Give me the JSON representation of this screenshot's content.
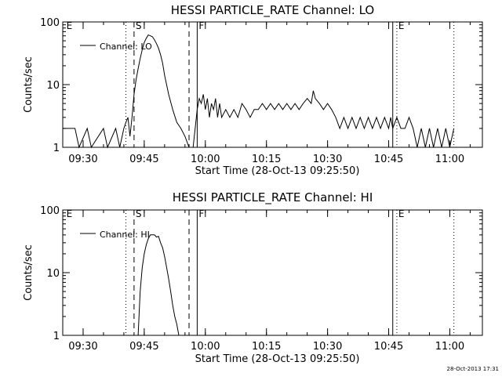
{
  "chart_data": [
    {
      "type": "line",
      "title": "HESSI PARTICLE_RATE Channel: LO",
      "ylabel": "Counts/sec",
      "xlabel": "Start Time (28-Oct-13 09:25:50)",
      "y_scale": "log",
      "ylim": [
        1,
        100
      ],
      "y_ticks": [
        {
          "value": 1,
          "label": "1"
        },
        {
          "value": 10,
          "label": "10"
        },
        {
          "value": 100,
          "label": "100"
        }
      ],
      "xlim": [
        "09:25",
        "11:08"
      ],
      "x_ticks": [
        "09:30",
        "09:45",
        "10:00",
        "10:15",
        "10:30",
        "10:45",
        "11:00"
      ],
      "legend": {
        "position": "top-left",
        "label": "Channel: LO"
      },
      "markers": [
        {
          "time": "09:25.5",
          "label": "E",
          "style": "none"
        },
        {
          "time": "09:40.5",
          "label": "",
          "style": "dotted"
        },
        {
          "time": "09:42.5",
          "label": "S",
          "style": "dashed"
        },
        {
          "time": "09:56",
          "label": "",
          "style": "dashed"
        },
        {
          "time": "09:58",
          "label": "F",
          "style": "solid"
        },
        {
          "time": "10:46",
          "label": "",
          "style": "solid"
        },
        {
          "time": "10:47",
          "label": "E",
          "style": "dotted"
        },
        {
          "time": "11:01",
          "label": "",
          "style": "dotted"
        }
      ],
      "series": [
        {
          "x": [
            "09:25",
            "09:28",
            "09:29",
            "09:31",
            "09:32",
            "09:35",
            "09:36",
            "09:38",
            "09:39",
            "09:40",
            "09:40.5",
            "09:41",
            "09:41.5",
            "09:42",
            "09:42.5",
            "09:43",
            "09:43.5",
            "09:44",
            "09:44.5",
            "09:45",
            "09:45.5",
            "09:46",
            "09:46.5",
            "09:47",
            "09:47.5",
            "09:48",
            "09:48.5",
            "09:49",
            "09:49.5",
            "09:50",
            "09:51",
            "09:52",
            "09:53",
            "09:54",
            "09:55",
            "09:56",
            "09:57",
            "09:58",
            "09:58.5",
            "09:59",
            "09:59.5",
            "10:00",
            "10:00.5",
            "10:01",
            "10:01.5",
            "10:02",
            "10:02.5",
            "10:03",
            "10:03.5",
            "10:04",
            "10:05",
            "10:06",
            "10:07",
            "10:08",
            "10:09",
            "10:10",
            "10:11",
            "10:12",
            "10:13",
            "10:14",
            "10:15",
            "10:16",
            "10:17",
            "10:18",
            "10:19",
            "10:20",
            "10:21",
            "10:22",
            "10:23",
            "10:24",
            "10:25",
            "10:26",
            "10:26.5",
            "10:27",
            "10:28",
            "10:29",
            "10:30",
            "10:31",
            "10:32",
            "10:33",
            "10:34",
            "10:35",
            "10:36",
            "10:37",
            "10:38",
            "10:39",
            "10:40",
            "10:41",
            "10:42",
            "10:43",
            "10:44",
            "10:45",
            "10:45.5",
            "10:46",
            "10:47",
            "10:48",
            "10:49",
            "10:50",
            "10:51",
            "10:52",
            "10:53",
            "10:54",
            "10:55",
            "10:56",
            "10:57",
            "10:58",
            "10:59",
            "11:00",
            "11:01"
          ],
          "values": [
            2,
            2,
            1,
            2,
            1,
            2,
            1,
            2,
            1,
            2,
            2.5,
            3,
            1.5,
            3,
            7,
            12,
            18,
            26,
            36,
            47,
            55,
            62,
            60,
            58,
            52,
            45,
            38,
            30,
            22,
            14,
            7,
            4,
            2.5,
            2,
            1.5,
            1,
            1,
            4,
            6,
            5,
            7,
            4,
            6,
            3,
            5,
            4,
            6,
            3,
            5,
            3,
            4,
            3,
            4,
            3,
            5,
            4,
            3,
            4,
            4,
            5,
            4,
            5,
            4,
            5,
            4,
            5,
            4,
            5,
            4,
            5,
            6,
            5,
            8,
            6,
            5,
            4,
            5,
            4,
            3,
            2,
            3,
            2,
            3,
            2,
            3,
            2,
            3,
            2,
            3,
            2,
            3,
            2,
            3,
            2,
            3,
            2,
            2,
            3,
            2,
            1,
            2,
            1,
            2,
            1,
            2,
            1,
            2,
            1,
            2
          ]
        }
      ]
    },
    {
      "type": "line",
      "title": "HESSI PARTICLE_RATE Channel: HI",
      "ylabel": "Counts/sec",
      "xlabel": "Start Time (28-Oct-13 09:25:50)",
      "y_scale": "log",
      "ylim": [
        1,
        100
      ],
      "y_ticks": [
        {
          "value": 1,
          "label": "1"
        },
        {
          "value": 10,
          "label": "10"
        },
        {
          "value": 100,
          "label": "100"
        }
      ],
      "xlim": [
        "09:25",
        "11:08"
      ],
      "x_ticks": [
        "09:30",
        "09:45",
        "10:00",
        "10:15",
        "10:30",
        "10:45",
        "11:00"
      ],
      "legend": {
        "position": "top-left",
        "label": "Channel: HI"
      },
      "markers": [
        {
          "time": "09:25.5",
          "label": "E",
          "style": "none"
        },
        {
          "time": "09:40.5",
          "label": "",
          "style": "dotted"
        },
        {
          "time": "09:42.5",
          "label": "S",
          "style": "dashed"
        },
        {
          "time": "09:56",
          "label": "",
          "style": "dashed"
        },
        {
          "time": "09:58",
          "label": "F",
          "style": "solid"
        },
        {
          "time": "10:46",
          "label": "",
          "style": "solid"
        },
        {
          "time": "10:47",
          "label": "E",
          "style": "dotted"
        },
        {
          "time": "11:01",
          "label": "",
          "style": "dotted"
        }
      ],
      "series": [
        {
          "x": [
            "09:43.5",
            "09:44",
            "09:44.5",
            "09:45",
            "09:45.5",
            "09:46",
            "09:46.5",
            "09:47",
            "09:47.5",
            "09:48",
            "09:48.5",
            "09:49",
            "09:49.5",
            "09:50",
            "09:50.5",
            "09:51",
            "09:51.5",
            "09:52",
            "09:52.5",
            "09:53",
            "09:53.5"
          ],
          "values": [
            1,
            5,
            12,
            20,
            28,
            35,
            40,
            40,
            40,
            37,
            38,
            30,
            25,
            18,
            12,
            8,
            5,
            3,
            2,
            1.5,
            1
          ]
        }
      ]
    }
  ],
  "timestamp": "28-Oct-2013 17:31"
}
